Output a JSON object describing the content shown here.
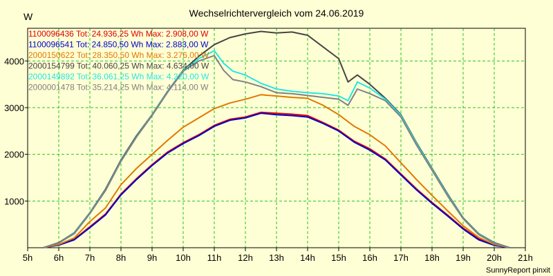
{
  "chart_data": {
    "type": "line",
    "title": "Wechselrichtervergleich vom 24.06.2019",
    "ylabel": "W",
    "xlabel": "",
    "footer": "SunnyReport pinxit",
    "ylim": [
      0,
      4700
    ],
    "xlim": [
      5,
      21
    ],
    "grid": true,
    "legend_position": "top-left",
    "x_ticks": [
      5,
      6,
      7,
      8,
      9,
      10,
      11,
      12,
      13,
      14,
      15,
      16,
      17,
      18,
      19,
      20,
      21
    ],
    "x_tick_labels": [
      "5h",
      "6h",
      "7h",
      "8h",
      "9h",
      "10h",
      "11h",
      "12h",
      "13h",
      "14h",
      "15h",
      "16h",
      "17h",
      "18h",
      "19h",
      "20h",
      "21h"
    ],
    "y_ticks": [
      1000,
      2000,
      3000,
      4000
    ],
    "y_tick_labels": [
      "1000",
      "2000",
      "3000",
      "4000"
    ],
    "series": [
      {
        "name": "1100096436",
        "legend": "1100096436 Tot: 24.936,25 Wh Max: 2.908,00 W",
        "color": "#dd0000",
        "x": [
          5.5,
          6,
          6.5,
          7,
          7.5,
          8,
          8.5,
          9,
          9.5,
          10,
          10.5,
          11,
          11.5,
          12,
          12.5,
          13,
          13.5,
          14,
          14.5,
          15,
          15.5,
          16,
          16.5,
          17,
          17.5,
          18,
          18.5,
          19,
          19.5,
          20,
          20.5
        ],
        "y": [
          0,
          60,
          180,
          450,
          720,
          1150,
          1480,
          1780,
          2050,
          2250,
          2420,
          2620,
          2750,
          2800,
          2900,
          2880,
          2860,
          2830,
          2680,
          2520,
          2280,
          2120,
          1900,
          1580,
          1260,
          970,
          700,
          420,
          190,
          60,
          0
        ]
      },
      {
        "name": "1100096541",
        "legend": "1100096541 Tot: 24.850,50 Wh Max: 2.883,00 W",
        "color": "#0000cc",
        "x": [
          5.5,
          6,
          6.5,
          7,
          7.5,
          8,
          8.5,
          9,
          9.5,
          10,
          10.5,
          11,
          11.5,
          12,
          12.5,
          13,
          13.5,
          14,
          14.5,
          15,
          15.5,
          16,
          16.5,
          17,
          17.5,
          18,
          18.5,
          19,
          19.5,
          20,
          20.5
        ],
        "y": [
          0,
          55,
          170,
          430,
          700,
          1130,
          1460,
          1760,
          2030,
          2230,
          2400,
          2600,
          2730,
          2780,
          2880,
          2850,
          2830,
          2800,
          2660,
          2500,
          2260,
          2090,
          1880,
          1560,
          1240,
          950,
          680,
          400,
          170,
          50,
          0
        ]
      },
      {
        "name": "2000150622",
        "legend": "2000150622 Tot: 28.350,50 Wh Max: 3.276,00 W",
        "color": "#e07800",
        "x": [
          5.5,
          6,
          6.5,
          7,
          7.5,
          8,
          8.5,
          9,
          9.5,
          10,
          10.5,
          11,
          11.5,
          12,
          12.5,
          13,
          13.5,
          14,
          14.5,
          15,
          15.5,
          16,
          16.5,
          17,
          17.5,
          18,
          18.5,
          19,
          19.5,
          20,
          20.5
        ],
        "y": [
          0,
          70,
          210,
          560,
          850,
          1350,
          1700,
          2000,
          2300,
          2580,
          2780,
          2980,
          3100,
          3180,
          3276,
          3250,
          3220,
          3200,
          3050,
          2850,
          2600,
          2420,
          2180,
          1820,
          1460,
          1120,
          790,
          470,
          220,
          70,
          0
        ]
      },
      {
        "name": "2000154799",
        "legend": "2000154799 Tot: 40.060,25 Wh Max: 4.634,00 W",
        "color": "#444444",
        "x": [
          5.5,
          6,
          6.5,
          7,
          7.5,
          8,
          8.5,
          9,
          9.5,
          10,
          10.5,
          11,
          11.5,
          12,
          12.5,
          13,
          13.5,
          14,
          14.5,
          15,
          15.3,
          15.6,
          16,
          16.5,
          17,
          17.5,
          18,
          18.5,
          19,
          19.5,
          20,
          20.5
        ],
        "y": [
          0,
          110,
          320,
          750,
          1250,
          1880,
          2400,
          2850,
          3350,
          3800,
          4100,
          4350,
          4500,
          4580,
          4634,
          4600,
          4620,
          4550,
          4300,
          4050,
          3550,
          3700,
          3500,
          3200,
          2850,
          2250,
          1700,
          1150,
          640,
          300,
          110,
          0
        ]
      },
      {
        "name": "2000149892",
        "legend": "2000149892 Tot: 36.061,25 Wh Max: 4.220,00 W",
        "color": "#22e6e6",
        "x": [
          5.5,
          6,
          6.5,
          7,
          7.5,
          8,
          8.5,
          9,
          9.5,
          10,
          10.5,
          11,
          11.3,
          11.6,
          12,
          12.5,
          13,
          13.5,
          14,
          14.5,
          15,
          15.3,
          15.6,
          16,
          16.5,
          17,
          17.5,
          18,
          18.5,
          19,
          19.5,
          20,
          20.5
        ],
        "y": [
          0,
          100,
          310,
          740,
          1230,
          1860,
          2380,
          2840,
          3340,
          3790,
          4050,
          4220,
          3950,
          3780,
          3700,
          3520,
          3400,
          3350,
          3320,
          3300,
          3250,
          3150,
          3550,
          3420,
          3180,
          2830,
          2230,
          1680,
          1130,
          630,
          290,
          100,
          0
        ]
      },
      {
        "name": "2000001478",
        "legend": "2000001478 Tot: 35.214,25 Wh Max: 4.114,00 W",
        "color": "#808080",
        "x": [
          5.5,
          6,
          6.5,
          7,
          7.5,
          8,
          8.5,
          9,
          9.5,
          10,
          10.5,
          11,
          11.3,
          11.6,
          12,
          12.5,
          13,
          13.5,
          14,
          14.5,
          15,
          15.3,
          15.6,
          16,
          16.5,
          17,
          17.5,
          18,
          18.5,
          19,
          19.5,
          20,
          20.5
        ],
        "y": [
          0,
          100,
          300,
          730,
          1220,
          1850,
          2370,
          2830,
          3330,
          3780,
          4000,
          4114,
          3800,
          3600,
          3550,
          3450,
          3320,
          3300,
          3260,
          3220,
          3180,
          3050,
          3400,
          3300,
          3150,
          2800,
          2200,
          1660,
          1110,
          620,
          280,
          95,
          0
        ]
      }
    ]
  }
}
